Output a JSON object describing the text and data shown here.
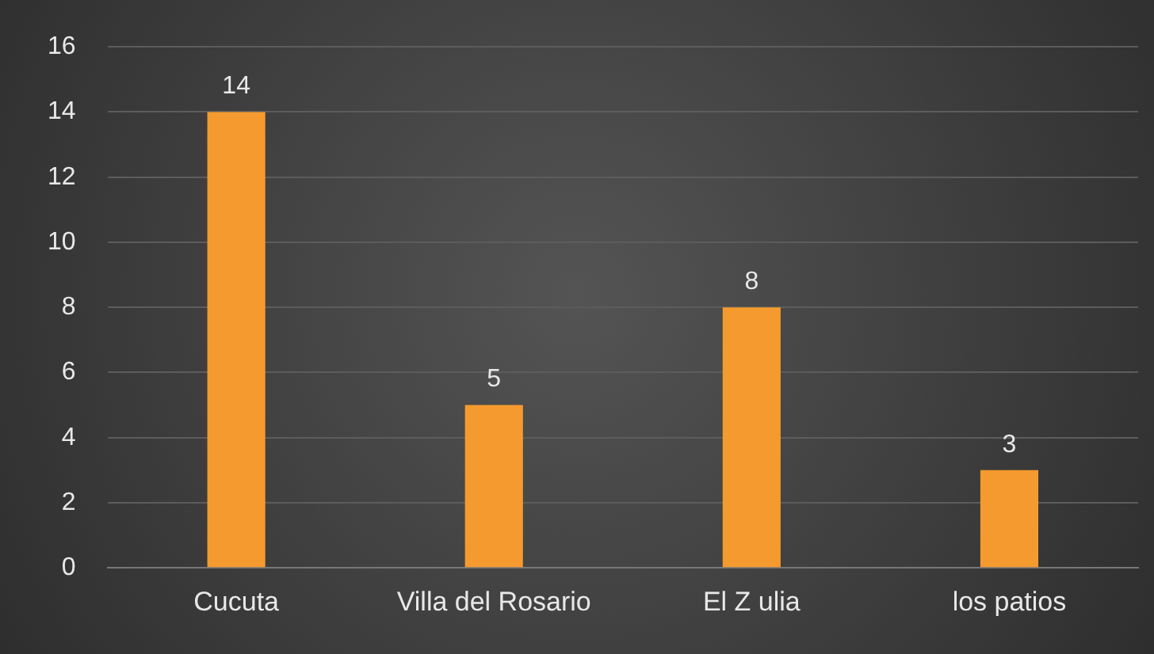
{
  "chart_data": {
    "type": "bar",
    "categories": [
      "Cucuta",
      "Villa del Rosario",
      "El Z ulia",
      "los patios"
    ],
    "values": [
      14,
      5,
      8,
      3
    ],
    "color": "#f59a2e",
    "ylim": [
      0,
      16
    ],
    "yticks": [
      0,
      2,
      4,
      6,
      8,
      10,
      12,
      14,
      16
    ],
    "grid": "y",
    "data_labels": true,
    "legend": false
  }
}
